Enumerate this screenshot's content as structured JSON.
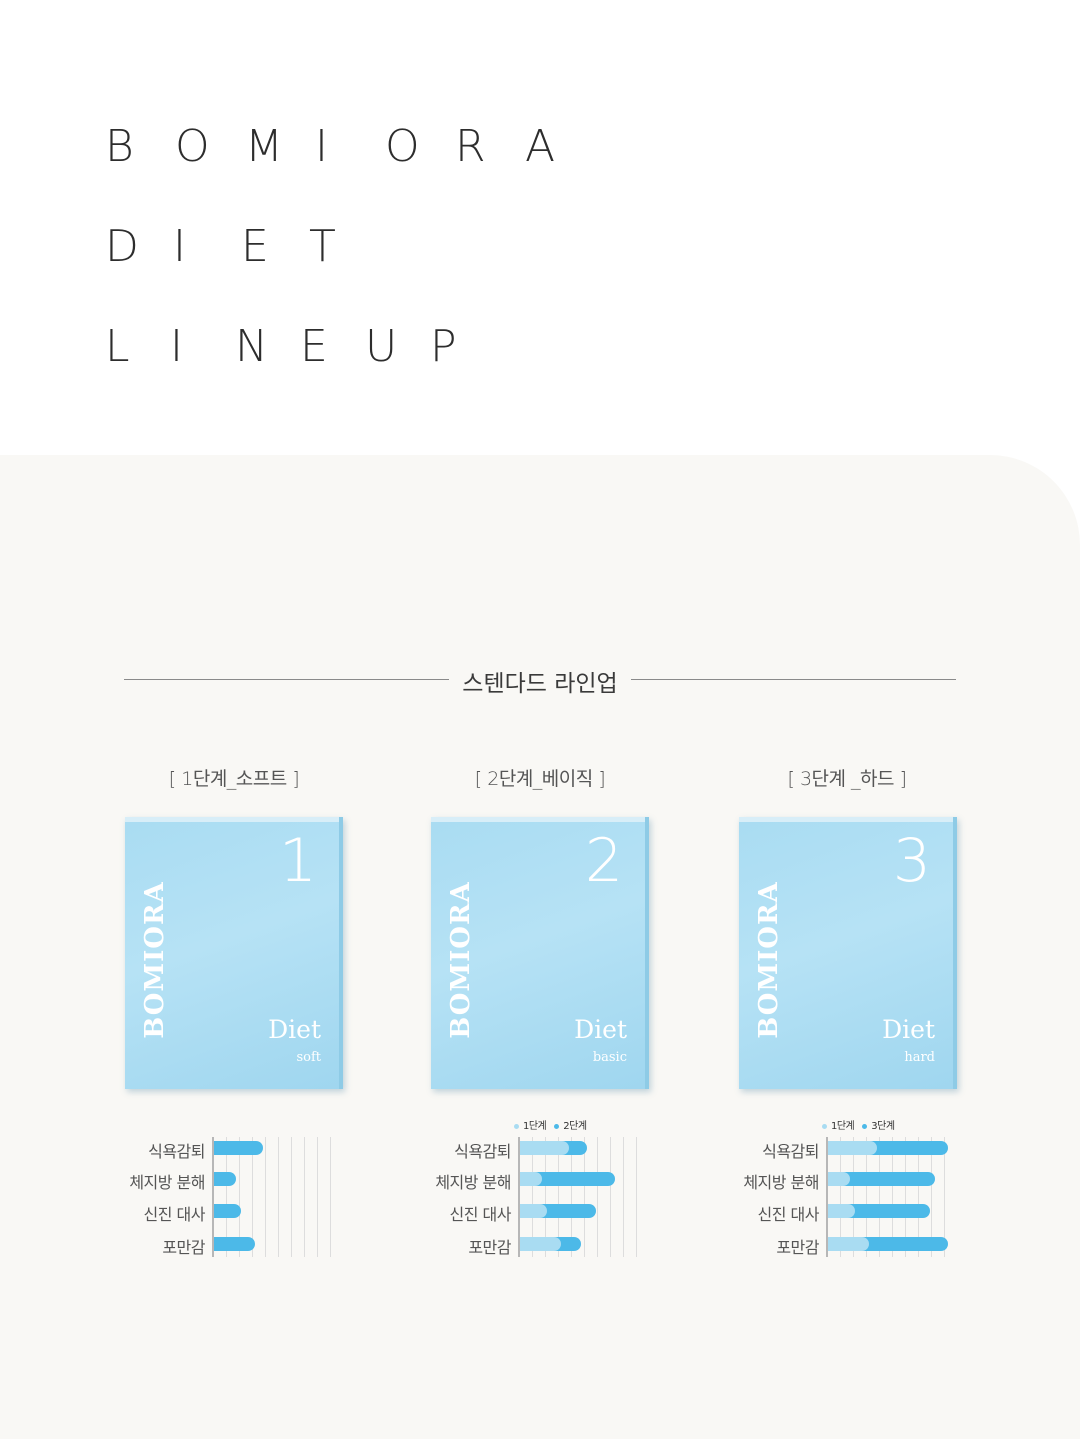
{
  "hero": {
    "line1": [
      "B",
      "O",
      "M",
      "I",
      "O",
      "R",
      "A"
    ],
    "line2": [
      "D",
      "I",
      "E",
      "T"
    ],
    "line3": [
      "L",
      "I",
      "N",
      "E",
      "U",
      "P"
    ]
  },
  "section": {
    "title": "스텐다드 라인업"
  },
  "products": [
    {
      "label": "[ 1단계_소프트 ]",
      "brand": "BOMIORA",
      "number": "1",
      "diet": "Diet",
      "sub": "soft"
    },
    {
      "label": "[ 2단계_베이직 ]",
      "brand": "BOMIORA",
      "number": "2",
      "diet": "Diet",
      "sub": "basic"
    },
    {
      "label": "[ 3단계 _하드 ]",
      "brand": "BOMIORA",
      "number": "3",
      "diet": "Diet",
      "sub": "hard"
    }
  ],
  "chart_data": [
    {
      "type": "bar",
      "categories": [
        "식욕감퇴",
        "체지방 분해",
        "신진 대사",
        "포만감"
      ],
      "series": [
        {
          "name": "",
          "values": [
            0.4,
            0.18,
            0.22,
            0.34
          ]
        }
      ],
      "legend": []
    },
    {
      "type": "bar",
      "categories": [
        "식욕감퇴",
        "체지방 분해",
        "신진 대사",
        "포만감"
      ],
      "series": [
        {
          "name": "1단계",
          "values": [
            0.4,
            0.18,
            0.22,
            0.34
          ]
        },
        {
          "name": "2단계",
          "values": [
            0.55,
            0.78,
            0.62,
            0.5
          ]
        }
      ],
      "legend": [
        "1단계",
        "2단계"
      ]
    },
    {
      "type": "bar",
      "categories": [
        "식욕감퇴",
        "체지방 분해",
        "신진 대사",
        "포만감"
      ],
      "series": [
        {
          "name": "1단계",
          "values": [
            0.4,
            0.18,
            0.22,
            0.34
          ]
        },
        {
          "name": "3단계",
          "values": [
            0.98,
            0.88,
            0.84,
            0.98
          ]
        }
      ],
      "legend": [
        "1단계",
        "3단계"
      ]
    }
  ],
  "colors": {
    "dark_bar": "#4cb9e8",
    "light_bar": "#a9dcf2",
    "panel_bg": "#f9f8f5"
  }
}
